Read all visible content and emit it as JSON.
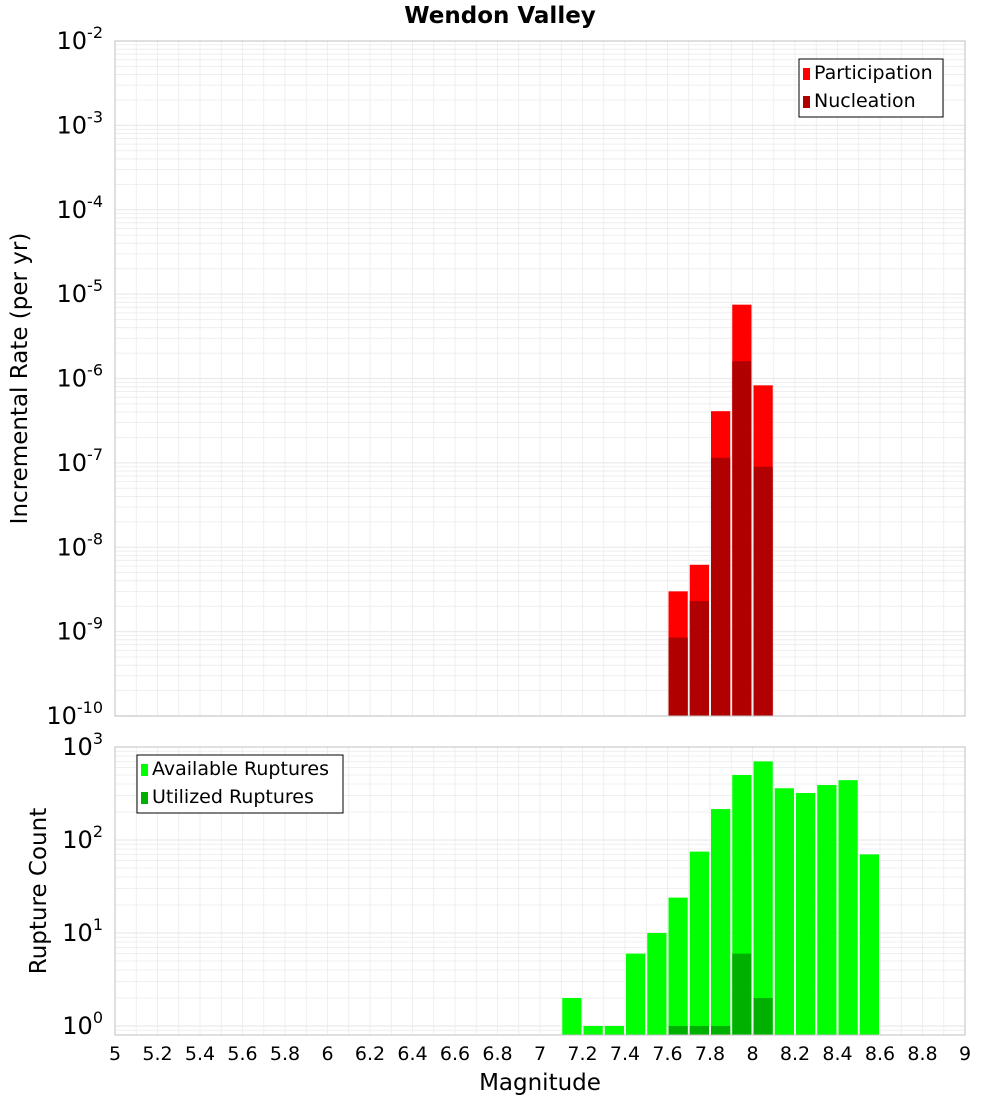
{
  "title": "Wendon Valley",
  "xlabel": "Magnitude",
  "x_ticks": [
    "5",
    "5.2",
    "5.4",
    "5.6",
    "5.8",
    "6",
    "6.2",
    "6.4",
    "6.6",
    "6.8",
    "7",
    "7.2",
    "7.4",
    "7.6",
    "7.8",
    "8",
    "8.2",
    "8.4",
    "8.6",
    "8.8",
    "9"
  ],
  "colors": {
    "participation": "#ff0000",
    "nucleation": "#b00000",
    "available": "#00ff00",
    "utilized": "#00b000",
    "grid": "#ebebeb",
    "frame": "#c0c0c0"
  },
  "chart_data": [
    {
      "type": "bar",
      "title": "Wendon Valley",
      "xlabel": "",
      "ylabel": "Incremental Rate (per yr)",
      "y_scale": "log",
      "xlim": [
        5,
        9
      ],
      "ylim": [
        1e-10,
        0.01
      ],
      "y_ticks": [
        "10^-10",
        "10^-9",
        "10^-8",
        "10^-7",
        "10^-6",
        "10^-5",
        "10^-4",
        "10^-3",
        "10^-2"
      ],
      "grid": true,
      "legend_position": "top-right",
      "bin_width": 0.1,
      "x": [
        7.65,
        7.75,
        7.85,
        7.95,
        8.05
      ],
      "series": [
        {
          "name": "Participation",
          "values": [
            3e-09,
            6.2e-09,
            4.1e-07,
            7.5e-06,
            8.3e-07
          ]
        },
        {
          "name": "Nucleation",
          "values": [
            8.5e-10,
            2.3e-09,
            1.15e-07,
            1.6e-06,
            9e-08
          ]
        }
      ]
    },
    {
      "type": "bar",
      "title": "",
      "xlabel": "Magnitude",
      "ylabel": "Rupture Count",
      "y_scale": "log",
      "xlim": [
        5,
        9
      ],
      "ylim": [
        0.8,
        1000
      ],
      "y_ticks": [
        "10^0",
        "10^1",
        "10^2",
        "10^3"
      ],
      "grid": true,
      "legend_position": "top-left",
      "bin_width": 0.1,
      "x": [
        7.15,
        7.25,
        7.35,
        7.45,
        7.55,
        7.65,
        7.75,
        7.85,
        7.95,
        8.05,
        8.15,
        8.25,
        8.35,
        8.45,
        8.55
      ],
      "series": [
        {
          "name": "Available Ruptures",
          "values": [
            2,
            1,
            1,
            6,
            10,
            24,
            75,
            215,
            500,
            700,
            360,
            320,
            390,
            440,
            70
          ]
        },
        {
          "name": "Utilized Ruptures",
          "values": [
            null,
            null,
            null,
            null,
            null,
            1,
            1,
            1,
            6,
            2,
            null,
            null,
            null,
            null,
            null
          ]
        }
      ]
    }
  ]
}
